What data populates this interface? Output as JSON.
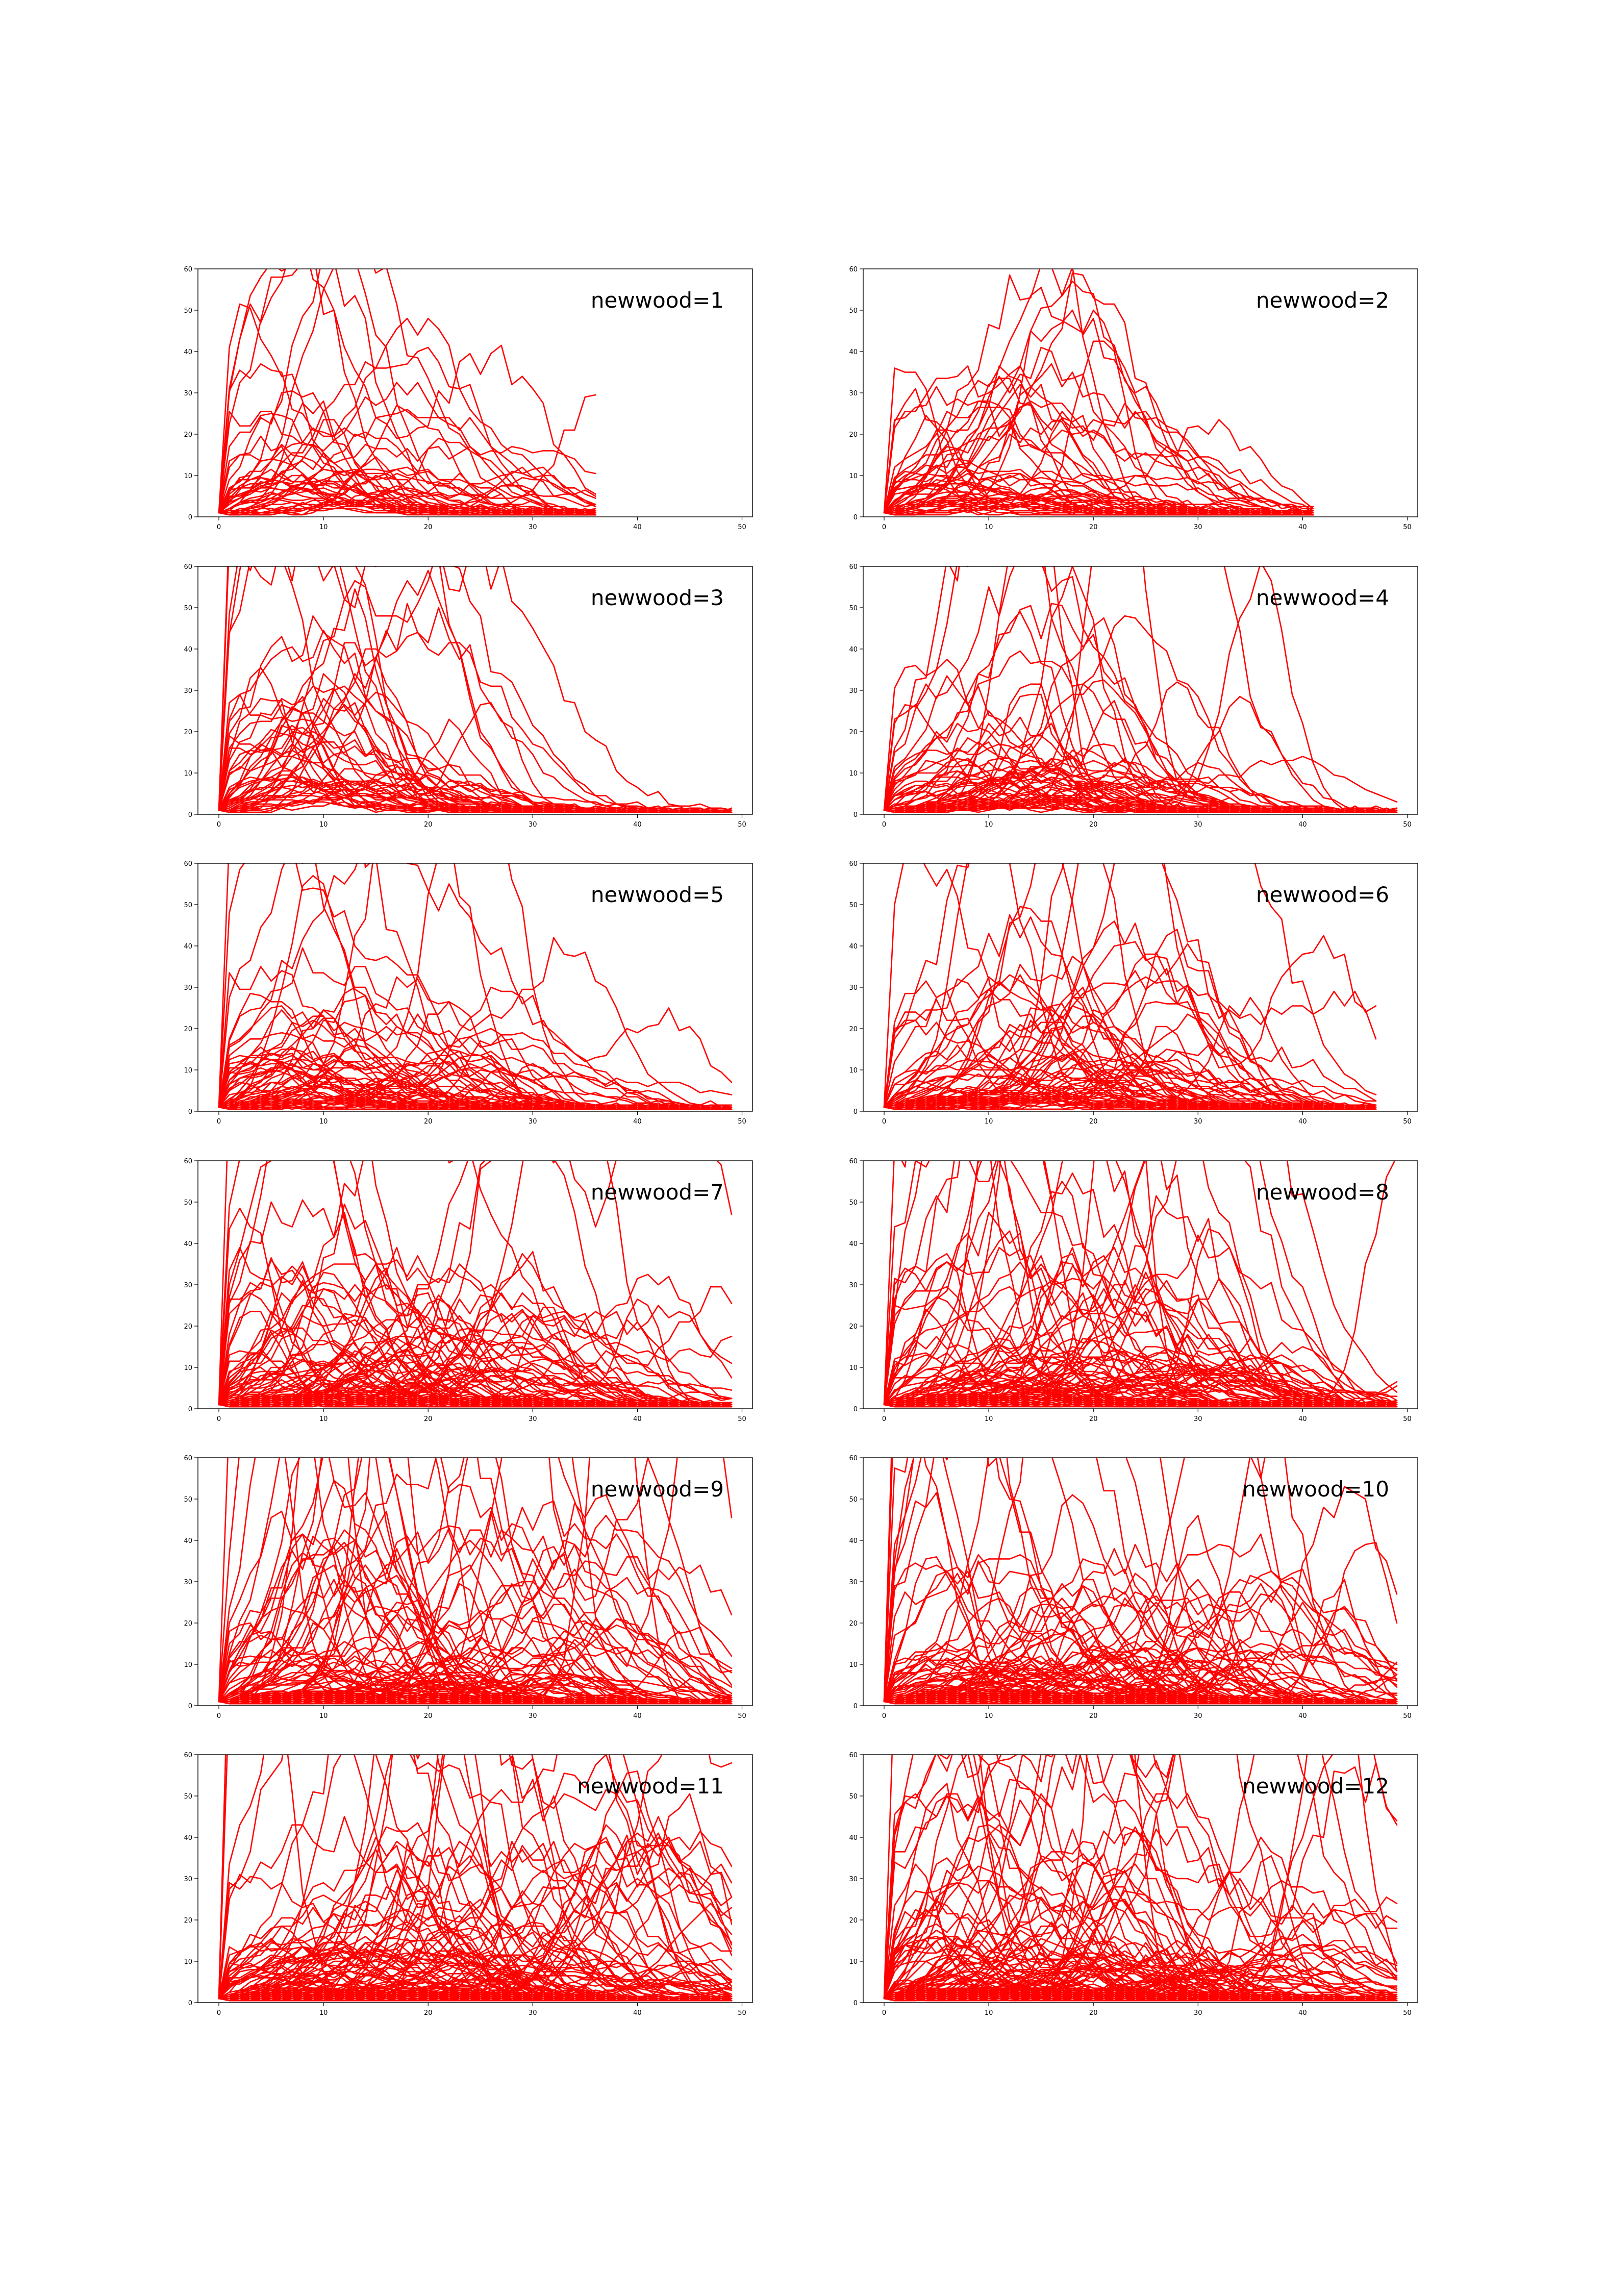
{
  "figure": {
    "line_color": "#ff0000",
    "axis_color": "#000000"
  },
  "chart_data": [
    {
      "type": "line",
      "title": "newwood=1",
      "xlim": [
        -2,
        51
      ],
      "ylim": [
        0,
        60
      ],
      "xticks": [
        0,
        10,
        20,
        30,
        40,
        50
      ],
      "yticks": [
        0,
        10,
        20,
        30,
        40,
        50,
        60
      ],
      "grid": false,
      "legend": "none",
      "seed": 11,
      "series_count": 45,
      "end_x": 36,
      "peak_median": 12,
      "peak_spread": 16
    },
    {
      "type": "line",
      "title": "newwood=2",
      "xlim": [
        -2,
        51
      ],
      "ylim": [
        0,
        60
      ],
      "xticks": [
        0,
        10,
        20,
        30,
        40,
        50
      ],
      "yticks": [
        0,
        10,
        20,
        30,
        40,
        50,
        60
      ],
      "grid": false,
      "legend": "none",
      "seed": 23,
      "series_count": 50,
      "end_x": 41,
      "peak_median": 13,
      "peak_spread": 18
    },
    {
      "type": "line",
      "title": "newwood=3",
      "xlim": [
        -2,
        51
      ],
      "ylim": [
        0,
        60
      ],
      "xticks": [
        0,
        10,
        20,
        30,
        40,
        50
      ],
      "yticks": [
        0,
        10,
        20,
        30,
        40,
        50,
        60
      ],
      "grid": false,
      "legend": "none",
      "seed": 37,
      "series_count": 50,
      "end_x": 49,
      "peak_median": 13,
      "peak_spread": 18
    },
    {
      "type": "line",
      "title": "newwood=4",
      "xlim": [
        -2,
        51
      ],
      "ylim": [
        0,
        60
      ],
      "xticks": [
        0,
        10,
        20,
        30,
        40,
        50
      ],
      "yticks": [
        0,
        10,
        20,
        30,
        40,
        50,
        60
      ],
      "grid": false,
      "legend": "none",
      "seed": 41,
      "series_count": 60,
      "end_x": 49,
      "peak_median": 16,
      "peak_spread": 20
    },
    {
      "type": "line",
      "title": "newwood=5",
      "xlim": [
        -2,
        51
      ],
      "ylim": [
        0,
        60
      ],
      "xticks": [
        0,
        10,
        20,
        30,
        40,
        50
      ],
      "yticks": [
        0,
        10,
        20,
        30,
        40,
        50,
        60
      ],
      "grid": false,
      "legend": "none",
      "seed": 53,
      "series_count": 65,
      "end_x": 49,
      "peak_median": 16,
      "peak_spread": 24
    },
    {
      "type": "line",
      "title": "newwood=6",
      "xlim": [
        -2,
        51
      ],
      "ylim": [
        0,
        60
      ],
      "xticks": [
        0,
        10,
        20,
        30,
        40,
        50
      ],
      "yticks": [
        0,
        10,
        20,
        30,
        40,
        50,
        60
      ],
      "grid": false,
      "legend": "none",
      "seed": 67,
      "series_count": 65,
      "end_x": 47,
      "peak_median": 18,
      "peak_spread": 26
    },
    {
      "type": "line",
      "title": "newwood=7",
      "xlim": [
        -2,
        51
      ],
      "ylim": [
        0,
        60
      ],
      "xticks": [
        0,
        10,
        20,
        30,
        40,
        50
      ],
      "yticks": [
        0,
        10,
        20,
        30,
        40,
        50,
        60
      ],
      "grid": false,
      "legend": "none",
      "seed": 71,
      "series_count": 85,
      "end_x": 49,
      "peak_median": 20,
      "peak_spread": 32
    },
    {
      "type": "line",
      "title": "newwood=8",
      "xlim": [
        -2,
        51
      ],
      "ylim": [
        0,
        60
      ],
      "xticks": [
        0,
        10,
        20,
        30,
        40,
        50
      ],
      "yticks": [
        0,
        10,
        20,
        30,
        40,
        50,
        60
      ],
      "grid": false,
      "legend": "none",
      "seed": 83,
      "series_count": 85,
      "end_x": 49,
      "peak_median": 20,
      "peak_spread": 32
    },
    {
      "type": "line",
      "title": "newwood=9",
      "xlim": [
        -2,
        51
      ],
      "ylim": [
        0,
        60
      ],
      "xticks": [
        0,
        10,
        20,
        30,
        40,
        50
      ],
      "yticks": [
        0,
        10,
        20,
        30,
        40,
        50,
        60
      ],
      "grid": false,
      "legend": "none",
      "seed": 97,
      "series_count": 90,
      "end_x": 49,
      "peak_median": 22,
      "peak_spread": 36
    },
    {
      "type": "line",
      "title": "newwood=10",
      "xlim": [
        -2,
        51
      ],
      "ylim": [
        0,
        60
      ],
      "xticks": [
        0,
        10,
        20,
        30,
        40,
        50
      ],
      "yticks": [
        0,
        10,
        20,
        30,
        40,
        50,
        60
      ],
      "grid": false,
      "legend": "none",
      "seed": 101,
      "series_count": 95,
      "end_x": 49,
      "peak_median": 24,
      "peak_spread": 38
    },
    {
      "type": "line",
      "title": "newwood=11",
      "xlim": [
        -2,
        51
      ],
      "ylim": [
        0,
        60
      ],
      "xticks": [
        0,
        10,
        20,
        30,
        40,
        50
      ],
      "yticks": [
        0,
        10,
        20,
        30,
        40,
        50,
        60
      ],
      "grid": false,
      "legend": "none",
      "seed": 113,
      "series_count": 110,
      "end_x": 49,
      "peak_median": 28,
      "peak_spread": 42
    },
    {
      "type": "line",
      "title": "newwood=12",
      "xlim": [
        -2,
        51
      ],
      "ylim": [
        0,
        60
      ],
      "xticks": [
        0,
        10,
        20,
        30,
        40,
        50
      ],
      "yticks": [
        0,
        10,
        20,
        30,
        40,
        50,
        60
      ],
      "grid": false,
      "legend": "none",
      "seed": 127,
      "series_count": 110,
      "end_x": 49,
      "peak_median": 28,
      "peak_spread": 42
    }
  ]
}
